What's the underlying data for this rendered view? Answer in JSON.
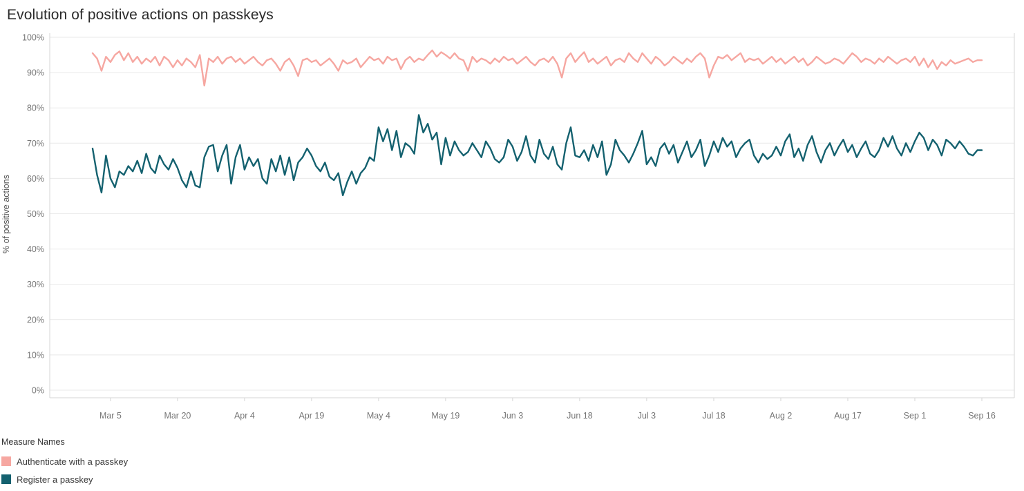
{
  "chart_data": {
    "type": "line",
    "title": "Evolution of positive actions on passkeys",
    "xlabel": "",
    "ylabel": "% of positive actions",
    "ylim": [
      0,
      100
    ],
    "grid": true,
    "y_tick_labels": [
      "0%",
      "10%",
      "20%",
      "30%",
      "40%",
      "50%",
      "60%",
      "70%",
      "80%",
      "90%",
      "100%"
    ],
    "x_ticks": [
      {
        "index": 4,
        "label": "Mar 5"
      },
      {
        "index": 19,
        "label": "Mar 20"
      },
      {
        "index": 34,
        "label": "Apr 4"
      },
      {
        "index": 49,
        "label": "Apr 19"
      },
      {
        "index": 64,
        "label": "May 4"
      },
      {
        "index": 79,
        "label": "May 19"
      },
      {
        "index": 94,
        "label": "Jun 3"
      },
      {
        "index": 109,
        "label": "Jun 18"
      },
      {
        "index": 124,
        "label": "Jul 3"
      },
      {
        "index": 139,
        "label": "Jul 18"
      },
      {
        "index": 154,
        "label": "Aug 2"
      },
      {
        "index": 169,
        "label": "Aug 17"
      },
      {
        "index": 184,
        "label": "Sep 1"
      },
      {
        "index": 199,
        "label": "Sep 16"
      }
    ],
    "legend": {
      "title": "Measure Names",
      "position": "bottom-left"
    },
    "series": [
      {
        "name": "Authenticate with a passkey",
        "color": "#f6a7a1",
        "values": [
          95.5,
          94.0,
          90.5,
          94.5,
          93.0,
          95.0,
          96.0,
          93.5,
          95.5,
          93.0,
          94.5,
          92.5,
          94.0,
          93.0,
          94.5,
          92.0,
          94.5,
          93.5,
          91.5,
          93.5,
          92.0,
          94.0,
          93.0,
          91.5,
          95.0,
          86.3,
          94.0,
          93.0,
          94.5,
          92.5,
          94.0,
          94.5,
          93.0,
          94.0,
          92.5,
          93.5,
          94.5,
          93.0,
          92.0,
          93.5,
          94.0,
          92.5,
          90.5,
          93.0,
          94.0,
          92.0,
          89.0,
          93.5,
          94.0,
          93.0,
          93.5,
          92.0,
          93.0,
          94.0,
          92.5,
          90.5,
          93.5,
          92.5,
          93.0,
          94.0,
          91.5,
          93.0,
          94.5,
          93.5,
          94.0,
          92.5,
          94.5,
          93.5,
          94.0,
          91.0,
          93.5,
          94.5,
          93.0,
          94.0,
          93.5,
          95.0,
          96.3,
          94.5,
          95.8,
          95.0,
          94.0,
          95.5,
          94.0,
          93.5,
          90.5,
          94.5,
          93.0,
          94.0,
          93.5,
          92.5,
          94.0,
          93.0,
          94.5,
          93.5,
          94.0,
          92.5,
          93.5,
          94.5,
          93.0,
          92.0,
          93.5,
          94.0,
          93.0,
          94.5,
          92.5,
          88.6,
          94.0,
          95.5,
          93.0,
          94.5,
          95.8,
          93.0,
          94.0,
          92.5,
          93.5,
          94.5,
          92.0,
          93.5,
          94.0,
          93.0,
          95.5,
          94.0,
          93.0,
          95.5,
          94.0,
          92.5,
          94.5,
          93.5,
          92.0,
          93.0,
          94.5,
          93.5,
          92.5,
          94.0,
          93.0,
          94.5,
          95.5,
          94.0,
          88.6,
          92.0,
          94.5,
          94.0,
          95.0,
          93.5,
          94.5,
          95.5,
          93.0,
          94.0,
          93.5,
          94.0,
          92.5,
          93.5,
          94.5,
          93.0,
          94.0,
          92.5,
          93.5,
          94.5,
          93.0,
          94.0,
          92.0,
          93.0,
          94.5,
          93.5,
          92.5,
          93.0,
          94.0,
          93.5,
          92.5,
          94.0,
          95.5,
          94.5,
          93.0,
          94.0,
          93.5,
          92.5,
          94.0,
          93.0,
          94.5,
          93.5,
          92.5,
          93.5,
          94.0,
          93.0,
          94.5,
          92.0,
          94.0,
          91.5,
          93.5,
          91.0,
          93.0,
          92.0,
          93.5,
          92.5,
          93.0,
          93.5,
          94.0,
          93.0,
          93.5,
          93.5
        ]
      },
      {
        "name": "Register a passkey",
        "color": "#14616f",
        "values": [
          68.5,
          61.0,
          56.0,
          66.5,
          60.0,
          57.5,
          62.0,
          61.0,
          63.5,
          62.0,
          65.0,
          61.5,
          67.0,
          63.0,
          61.5,
          66.5,
          64.0,
          62.5,
          65.5,
          63.0,
          59.5,
          57.5,
          62.0,
          58.0,
          57.5,
          66.0,
          69.0,
          69.5,
          62.0,
          66.5,
          69.5,
          58.5,
          66.0,
          69.5,
          62.5,
          66.0,
          63.5,
          65.5,
          60.0,
          58.5,
          65.5,
          62.0,
          66.5,
          61.0,
          66.0,
          59.5,
          64.5,
          66.0,
          68.5,
          66.5,
          63.5,
          62.0,
          64.5,
          60.5,
          59.5,
          61.5,
          55.2,
          59.0,
          62.0,
          58.5,
          61.5,
          63.0,
          66.0,
          65.0,
          74.5,
          70.5,
          74.0,
          68.0,
          73.5,
          66.0,
          70.0,
          69.0,
          67.0,
          78.0,
          73.0,
          75.5,
          71.0,
          73.0,
          64.0,
          71.5,
          66.5,
          70.5,
          68.0,
          66.5,
          67.5,
          70.0,
          68.0,
          66.0,
          70.5,
          68.5,
          65.5,
          64.5,
          66.0,
          71.0,
          69.0,
          65.0,
          67.5,
          72.0,
          66.5,
          64.5,
          71.0,
          67.0,
          65.5,
          69.0,
          64.0,
          62.5,
          70.0,
          74.5,
          66.5,
          66.0,
          68.0,
          65.0,
          69.5,
          66.0,
          70.5,
          61.0,
          64.0,
          71.0,
          68.0,
          66.5,
          64.5,
          67.0,
          70.0,
          73.5,
          64.0,
          66.0,
          63.5,
          68.5,
          70.0,
          67.0,
          69.5,
          64.5,
          67.5,
          70.5,
          66.0,
          68.0,
          71.0,
          63.5,
          66.5,
          70.5,
          67.5,
          71.5,
          69.0,
          70.5,
          66.0,
          68.5,
          70.0,
          71.0,
          66.5,
          64.5,
          67.0,
          65.5,
          66.5,
          69.0,
          66.5,
          70.5,
          72.5,
          66.0,
          68.5,
          65.0,
          69.5,
          72.0,
          67.5,
          64.5,
          68.0,
          70.0,
          66.5,
          69.0,
          71.0,
          67.5,
          69.5,
          66.0,
          68.5,
          70.5,
          67.0,
          66.0,
          68.0,
          71.5,
          69.0,
          72.0,
          68.5,
          66.5,
          70.0,
          67.5,
          70.5,
          73.0,
          71.5,
          68.0,
          71.0,
          69.5,
          66.5,
          71.0,
          70.0,
          68.5,
          70.5,
          69.0,
          67.0,
          66.5,
          68.0,
          68.0
        ]
      }
    ]
  }
}
